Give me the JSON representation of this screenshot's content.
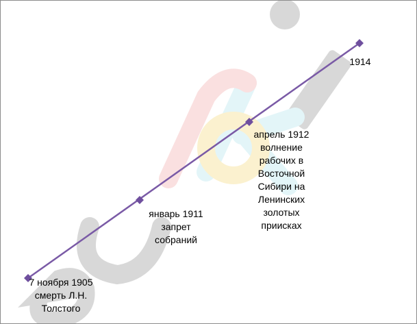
{
  "timeline": {
    "line_color": "#7a5aa6",
    "marker_color": "#6f4f9e",
    "events": [
      {
        "label": "7 ноября 1905\nсмерть Л.Н.\nТолстого",
        "year": 1905
      },
      {
        "label": "январь 1911\nзапрет\nсобраний",
        "year": 1911
      },
      {
        "label": "апрель 1912\nволнение\nрабочих в\nВосточной\nСибири на\nЛенинских\nзолотых\nприисках",
        "year": 1912
      },
      {
        "label": "1914",
        "year": 1914
      }
    ]
  },
  "watermark": {
    "text": "euroki",
    "colors": {
      "e": "#b9b9b9",
      "u": "#b9b9b9",
      "r": "#f6c8c8",
      "o": "#f9e7a8",
      "k": "#cdeef4",
      "i": "#b9b9b9"
    }
  }
}
